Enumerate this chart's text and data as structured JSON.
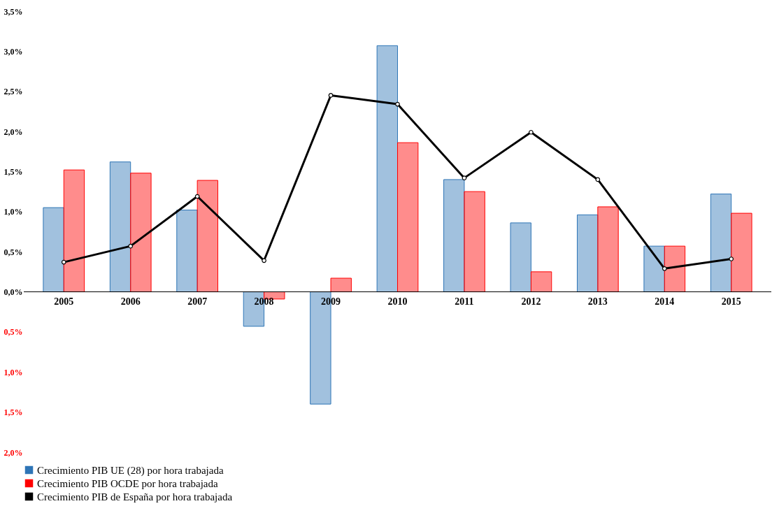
{
  "chart_data": {
    "type": "bar",
    "categories": [
      "2005",
      "2006",
      "2007",
      "2008",
      "2009",
      "2010",
      "2011",
      "2012",
      "2013",
      "2014",
      "2015"
    ],
    "series": [
      {
        "name": "Crecimiento PIB UE (28) por hora trabajada",
        "color": "#2e75b6",
        "values": [
          1.05,
          1.62,
          1.02,
          -0.43,
          -1.4,
          3.07,
          1.4,
          0.86,
          0.96,
          0.57,
          1.22
        ]
      },
      {
        "name": "Crecimiento PIB OCDE por hora trabajada",
        "color": "#ff0000",
        "values": [
          1.52,
          1.48,
          1.39,
          -0.09,
          0.17,
          1.86,
          1.25,
          0.25,
          1.06,
          0.57,
          0.98
        ]
      },
      {
        "name": "Crecimiento PIB de España por hora trabajada",
        "type": "line",
        "color": "#000000",
        "marker": "circle",
        "values": [
          0.37,
          0.57,
          1.19,
          0.39,
          2.45,
          2.34,
          1.42,
          1.99,
          1.4,
          0.29,
          0.41
        ]
      }
    ],
    "ylim": [
      -2.0,
      3.5
    ],
    "yticks": [
      {
        "value": -2.0,
        "label": "2,0%"
      },
      {
        "value": -1.5,
        "label": "1,5%"
      },
      {
        "value": -1.0,
        "label": "1,0%"
      },
      {
        "value": -0.5,
        "label": "0,5%"
      },
      {
        "value": 0,
        "label": "0,0%"
      },
      {
        "value": 0.5,
        "label": "0,5%"
      },
      {
        "value": 1.0,
        "label": "1,0%"
      },
      {
        "value": 1.5,
        "label": "1,5%"
      },
      {
        "value": 2.0,
        "label": "2,0%"
      },
      {
        "value": 2.5,
        "label": "2,5%"
      },
      {
        "value": 3.0,
        "label": "3,0%"
      },
      {
        "value": 3.5,
        "label": "3,5%"
      }
    ],
    "grid": false,
    "legend": "bottom"
  }
}
